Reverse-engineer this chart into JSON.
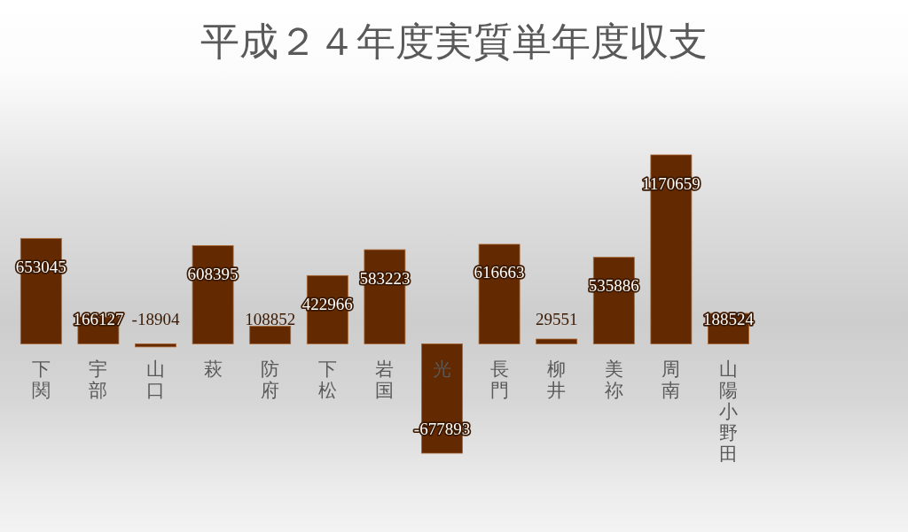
{
  "chart_data": {
    "type": "bar",
    "title": "平成２４年度実質単年度収支",
    "categories": [
      "下関",
      "宇部",
      "山口",
      "萩",
      "防府",
      "下松",
      "岩国",
      "光",
      "長門",
      "柳井",
      "美祢",
      "周南",
      "山陽小野田"
    ],
    "values": [
      653045,
      166127,
      -18904,
      608395,
      108852,
      422966,
      583223,
      -677893,
      616663,
      29551,
      535886,
      1170659,
      188524
    ],
    "color": "#632900",
    "data_labels": true
  }
}
